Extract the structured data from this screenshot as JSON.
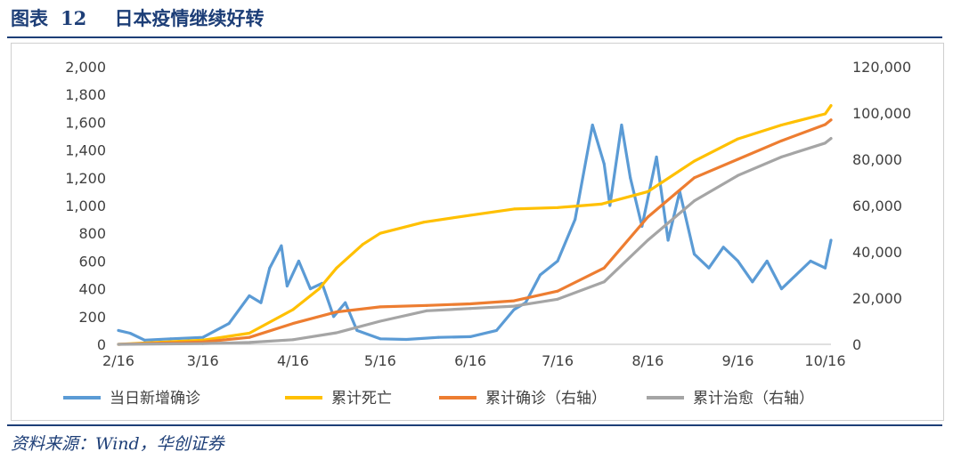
{
  "header": {
    "label": "图表",
    "number": "12",
    "title": "日本疫情继续好转"
  },
  "source": "资料来源：Wind，华创证券",
  "colors": {
    "title": "#1d3e77",
    "daily": "#5b9bd5",
    "deaths": "#ffc000",
    "confirmed": "#ed7d31",
    "recovered": "#a5a5a5"
  },
  "chart_data": {
    "type": "line",
    "x_ticks": [
      "2/16",
      "3/16",
      "4/16",
      "5/16",
      "6/16",
      "7/16",
      "8/16",
      "9/16",
      "10/16"
    ],
    "y_left": {
      "min": 0,
      "max": 2000,
      "ticks": [
        "0",
        "200",
        "400",
        "600",
        "800",
        "1,000",
        "1,200",
        "1,400",
        "1,600",
        "1,800",
        "2,000"
      ]
    },
    "y_right": {
      "min": 0,
      "max": 120000,
      "ticks": [
        "0",
        "20,000",
        "40,000",
        "60,000",
        "80,000",
        "100,000",
        "120,000"
      ]
    },
    "grid": false,
    "legend_position": "bottom",
    "series": [
      {
        "name": "当日新增确诊",
        "axis": "left",
        "color": "#5b9bd5",
        "points": [
          [
            "2/16",
            100
          ],
          [
            "2/20",
            80
          ],
          [
            "2/25",
            30
          ],
          [
            "3/5",
            40
          ],
          [
            "3/16",
            50
          ],
          [
            "3/25",
            150
          ],
          [
            "4/1",
            350
          ],
          [
            "4/5",
            300
          ],
          [
            "4/8",
            550
          ],
          [
            "4/12",
            710
          ],
          [
            "4/14",
            420
          ],
          [
            "4/18",
            600
          ],
          [
            "4/22",
            400
          ],
          [
            "4/26",
            440
          ],
          [
            "4/30",
            200
          ],
          [
            "5/4",
            300
          ],
          [
            "5/8",
            100
          ],
          [
            "5/16",
            40
          ],
          [
            "5/25",
            35
          ],
          [
            "6/5",
            50
          ],
          [
            "6/16",
            55
          ],
          [
            "6/25",
            100
          ],
          [
            "7/1",
            250
          ],
          [
            "7/5",
            300
          ],
          [
            "7/10",
            500
          ],
          [
            "7/16",
            600
          ],
          [
            "7/22",
            900
          ],
          [
            "7/28",
            1580
          ],
          [
            "8/1",
            1300
          ],
          [
            "8/3",
            1000
          ],
          [
            "8/7",
            1580
          ],
          [
            "8/10",
            1200
          ],
          [
            "8/14",
            850
          ],
          [
            "8/19",
            1350
          ],
          [
            "8/23",
            750
          ],
          [
            "8/27",
            1100
          ],
          [
            "9/1",
            650
          ],
          [
            "9/6",
            550
          ],
          [
            "9/11",
            700
          ],
          [
            "9/16",
            600
          ],
          [
            "9/21",
            450
          ],
          [
            "9/26",
            600
          ],
          [
            "10/1",
            400
          ],
          [
            "10/6",
            500
          ],
          [
            "10/11",
            600
          ],
          [
            "10/16",
            550
          ],
          [
            "10/18",
            750
          ]
        ]
      },
      {
        "name": "累计死亡",
        "axis": "left",
        "color": "#ffc000",
        "points": [
          [
            "2/16",
            0
          ],
          [
            "3/16",
            30
          ],
          [
            "4/1",
            80
          ],
          [
            "4/16",
            250
          ],
          [
            "4/25",
            400
          ],
          [
            "5/1",
            550
          ],
          [
            "5/10",
            720
          ],
          [
            "5/16",
            800
          ],
          [
            "5/31",
            880
          ],
          [
            "6/16",
            930
          ],
          [
            "7/1",
            975
          ],
          [
            "7/16",
            985
          ],
          [
            "7/31",
            1010
          ],
          [
            "8/16",
            1100
          ],
          [
            "9/1",
            1320
          ],
          [
            "9/16",
            1480
          ],
          [
            "10/1",
            1580
          ],
          [
            "10/16",
            1660
          ],
          [
            "10/18",
            1720
          ]
        ]
      },
      {
        "name": "累计确诊（右轴）",
        "axis": "right",
        "color": "#ed7d31",
        "points": [
          [
            "2/16",
            0
          ],
          [
            "3/1",
            500
          ],
          [
            "3/16",
            1000
          ],
          [
            "4/1",
            3000
          ],
          [
            "4/16",
            9000
          ],
          [
            "5/1",
            14000
          ],
          [
            "5/16",
            16200
          ],
          [
            "6/1",
            16800
          ],
          [
            "6/16",
            17500
          ],
          [
            "7/1",
            18800
          ],
          [
            "7/16",
            23000
          ],
          [
            "8/1",
            33000
          ],
          [
            "8/16",
            55000
          ],
          [
            "9/1",
            72000
          ],
          [
            "9/16",
            80000
          ],
          [
            "10/1",
            88000
          ],
          [
            "10/16",
            95000
          ],
          [
            "10/18",
            97000
          ]
        ]
      },
      {
        "name": "累计治愈（右轴）",
        "axis": "right",
        "color": "#a5a5a5",
        "points": [
          [
            "2/16",
            0
          ],
          [
            "3/16",
            300
          ],
          [
            "4/1",
            800
          ],
          [
            "4/16",
            2000
          ],
          [
            "5/1",
            5000
          ],
          [
            "5/16",
            10000
          ],
          [
            "6/1",
            14500
          ],
          [
            "6/16",
            15500
          ],
          [
            "7/1",
            16500
          ],
          [
            "7/16",
            19500
          ],
          [
            "8/1",
            27000
          ],
          [
            "8/16",
            45000
          ],
          [
            "9/1",
            62000
          ],
          [
            "9/16",
            73000
          ],
          [
            "10/1",
            81000
          ],
          [
            "10/16",
            87000
          ],
          [
            "10/18",
            89000
          ]
        ]
      }
    ]
  }
}
